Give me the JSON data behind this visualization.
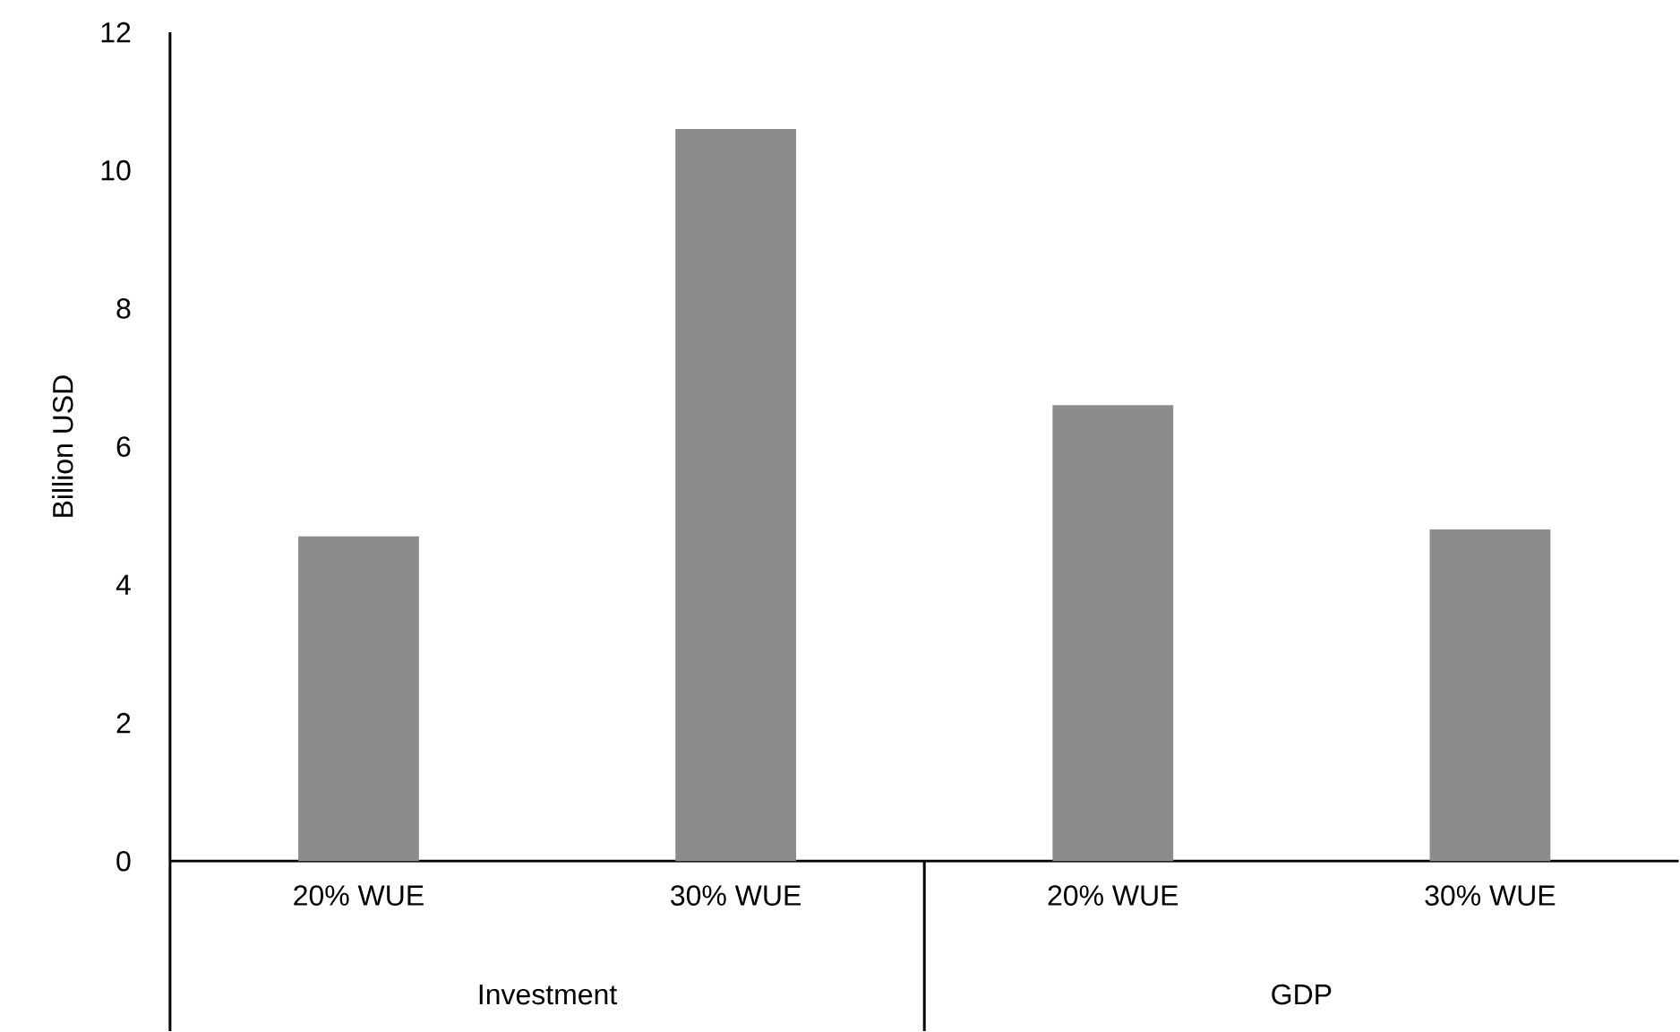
{
  "chart_data": {
    "type": "bar",
    "ylabel": "Billion USD",
    "categories": [
      "20% WUE",
      "30% WUE",
      "20% WUE",
      "30% WUE"
    ],
    "values": [
      4.7,
      10.6,
      6.6,
      4.8
    ],
    "color": "#8c8c8c",
    "ylim": [
      0,
      12
    ],
    "yticks": [
      0,
      2,
      4,
      6,
      8,
      10,
      12
    ],
    "annotations": [
      "Investment",
      "GDP"
    ]
  }
}
